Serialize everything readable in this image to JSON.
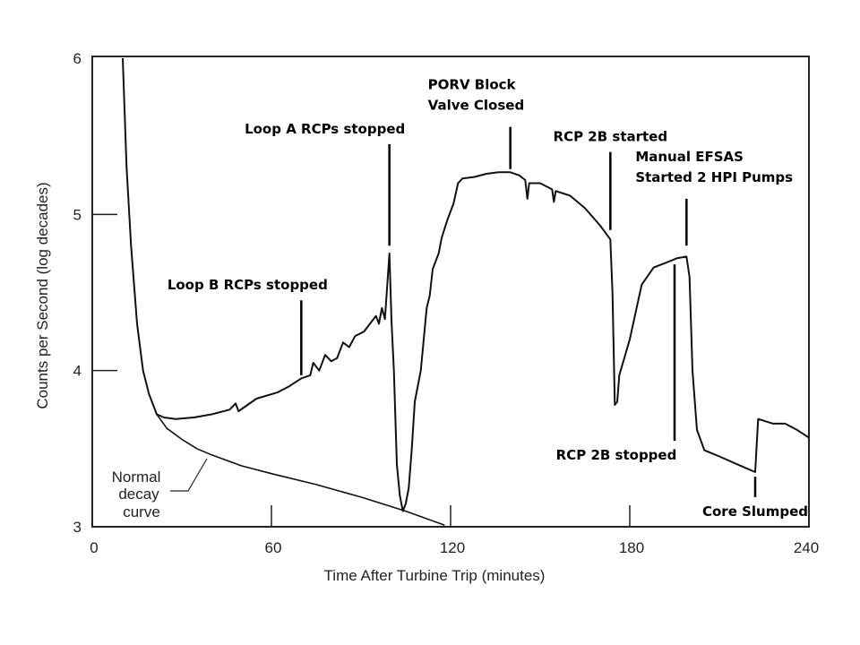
{
  "chart_data": {
    "type": "line",
    "title": "",
    "xlabel": "Time After Turbine Trip (minutes)",
    "ylabel": "Counts per Second (log decades)",
    "xlim": [
      0,
      240
    ],
    "ylim": [
      3,
      6
    ],
    "x_scale": "linear",
    "y_scale": "log decades",
    "grid": false,
    "x_ticks": [
      "0",
      "60",
      "120",
      "180",
      "240"
    ],
    "y_ticks": [
      "3",
      "4",
      "5",
      "6"
    ],
    "line_color": "#111111",
    "series": [
      {
        "points": [
          [
            10.2,
            6.0
          ],
          [
            11.5,
            5.3
          ],
          [
            13,
            4.8
          ],
          [
            15,
            4.3
          ],
          [
            17,
            4.0
          ],
          [
            19,
            3.85
          ],
          [
            21.6,
            3.72
          ],
          [
            24,
            3.7
          ],
          [
            28,
            3.69
          ],
          [
            34,
            3.7
          ],
          [
            40,
            3.72
          ],
          [
            46,
            3.75
          ],
          [
            48,
            3.79
          ],
          [
            49,
            3.74
          ],
          [
            55,
            3.82
          ],
          [
            62,
            3.86
          ],
          [
            66,
            3.9
          ],
          [
            70,
            3.95
          ],
          [
            73,
            3.97
          ],
          [
            74,
            4.05
          ],
          [
            76,
            4.0
          ],
          [
            78,
            4.1
          ],
          [
            80,
            4.06
          ],
          [
            82,
            4.08
          ],
          [
            84,
            4.18
          ],
          [
            86,
            4.15
          ],
          [
            88,
            4.22
          ],
          [
            91,
            4.25
          ],
          [
            93,
            4.3
          ],
          [
            95,
            4.35
          ],
          [
            96,
            4.3
          ],
          [
            97,
            4.4
          ],
          [
            98,
            4.33
          ],
          [
            99.5,
            4.75
          ],
          [
            100.2,
            4.32
          ],
          [
            101,
            4.0
          ],
          [
            102,
            3.4
          ],
          [
            103,
            3.2
          ],
          [
            104,
            3.1
          ],
          [
            105,
            3.15
          ],
          [
            106,
            3.25
          ],
          [
            107,
            3.5
          ],
          [
            108,
            3.8
          ],
          [
            110,
            4.0
          ],
          [
            112,
            4.4
          ],
          [
            113,
            4.48
          ],
          [
            114,
            4.65
          ],
          [
            116,
            4.75
          ],
          [
            117,
            4.85
          ],
          [
            119,
            4.97
          ],
          [
            121,
            5.07
          ],
          [
            122.5,
            5.2
          ],
          [
            124,
            5.23
          ],
          [
            128,
            5.24
          ],
          [
            132,
            5.26
          ],
          [
            136,
            5.27
          ],
          [
            140,
            5.27
          ],
          [
            143,
            5.25
          ],
          [
            145,
            5.22
          ],
          [
            145.7,
            5.1
          ],
          [
            146.3,
            5.2
          ],
          [
            150,
            5.2
          ],
          [
            154,
            5.16
          ],
          [
            154.6,
            5.08
          ],
          [
            155.2,
            5.15
          ],
          [
            160,
            5.12
          ],
          [
            165,
            5.04
          ],
          [
            170,
            4.93
          ],
          [
            173.5,
            4.84
          ],
          [
            174.2,
            4.5
          ],
          [
            175,
            3.78
          ],
          [
            175.8,
            3.8
          ],
          [
            176.5,
            3.97
          ],
          [
            180,
            4.2
          ],
          [
            184,
            4.55
          ],
          [
            188,
            4.66
          ],
          [
            192,
            4.69
          ],
          [
            196,
            4.72
          ],
          [
            199,
            4.73
          ],
          [
            200,
            4.6
          ],
          [
            201,
            4.0
          ],
          [
            202.5,
            3.62
          ],
          [
            205,
            3.49
          ],
          [
            210,
            3.45
          ],
          [
            216,
            3.4
          ],
          [
            222,
            3.35
          ],
          [
            223,
            3.69
          ],
          [
            228,
            3.66
          ],
          [
            232,
            3.66
          ],
          [
            236,
            3.62
          ],
          [
            240,
            3.57
          ]
        ]
      },
      {
        "label": "Normal decay curve",
        "points": [
          [
            21.6,
            3.72
          ],
          [
            25,
            3.63
          ],
          [
            30,
            3.56
          ],
          [
            35,
            3.5
          ],
          [
            40,
            3.46
          ],
          [
            50,
            3.39
          ],
          [
            60,
            3.34
          ],
          [
            75,
            3.27
          ],
          [
            90,
            3.19
          ],
          [
            105,
            3.1
          ],
          [
            118,
            3.01
          ]
        ]
      }
    ],
    "annotations": [
      {
        "text": "Loop B RCPs stopped",
        "x": 70,
        "y_from": 3.97,
        "y_to": 4.45,
        "side": "above"
      },
      {
        "text": "Loop A RCPs stopped",
        "x": 99.5,
        "y_from": 4.8,
        "y_to": 5.45,
        "side": "above"
      },
      {
        "text": "PORV Block",
        "text2": "Valve Closed",
        "x": 140,
        "y_from": 5.29,
        "y_to": 5.56,
        "side": "above"
      },
      {
        "text": "RCP 2B started",
        "x": 173.5,
        "y_from": 4.9,
        "y_to": 5.4,
        "side": "above"
      },
      {
        "text": "Manual  EFSAS",
        "text2": "Started  2 HPI Pumps",
        "x": 199,
        "y_from": 4.8,
        "y_to": 5.1,
        "side": "above"
      },
      {
        "text": "RCP 2B stopped",
        "x": 195,
        "y_from": 3.55,
        "y_to": 4.68,
        "side": "below"
      },
      {
        "text": "Core Slumped",
        "x": 222,
        "y_from": 3.19,
        "y_to": 3.32,
        "side": "below"
      }
    ]
  }
}
